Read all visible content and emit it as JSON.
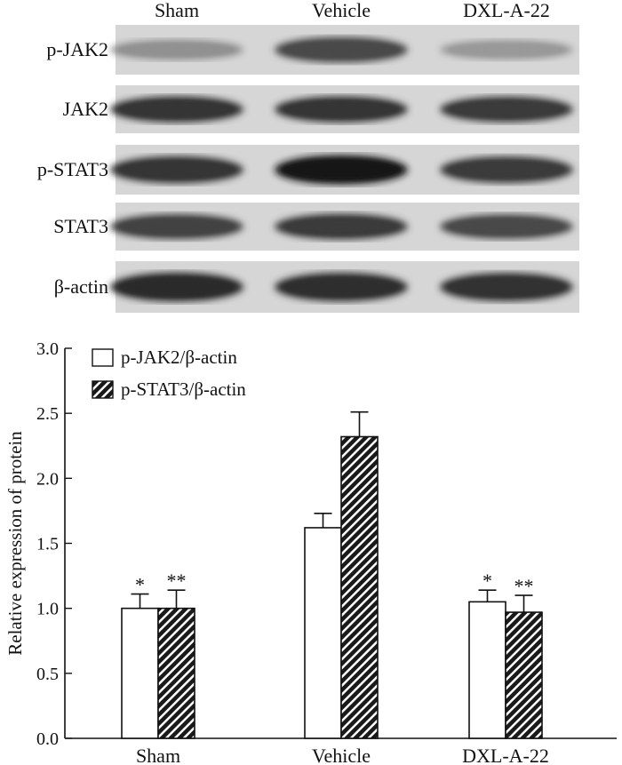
{
  "chart_data": [
    {
      "type": "western-blot",
      "lane_labels": [
        "Sham",
        "Vehicle",
        "DXL-A-22"
      ],
      "row_labels": [
        "p-JAK2",
        "JAK2",
        "p-STAT3",
        "STAT3",
        "β-actin"
      ],
      "band_intensity": [
        [
          0.42,
          0.75,
          0.38
        ],
        [
          0.85,
          0.85,
          0.82
        ],
        [
          0.85,
          0.98,
          0.82
        ],
        [
          0.78,
          0.82,
          0.75
        ],
        [
          0.9,
          0.88,
          0.86
        ]
      ]
    },
    {
      "type": "bar",
      "categories": [
        "Sham",
        "Vehicle",
        "DXL-A-22"
      ],
      "series": [
        {
          "name": "p-JAK2/β-actin",
          "values": [
            1.0,
            1.62,
            1.05
          ],
          "errors": [
            0.11,
            0.11,
            0.09
          ],
          "significance": [
            "*",
            "",
            "*"
          ],
          "fill": "#ffffff"
        },
        {
          "name": "p-STAT3/β-actin",
          "values": [
            1.0,
            2.32,
            0.97
          ],
          "errors": [
            0.14,
            0.19,
            0.13
          ],
          "significance": [
            "**",
            "",
            "**"
          ],
          "fill": "hatched"
        }
      ],
      "title": "",
      "xlabel": "",
      "ylabel": "Relative expression of protein",
      "ylim": [
        0,
        3.0
      ],
      "yticks": [
        "0.0",
        "0.5",
        "1.0",
        "1.5",
        "2.0",
        "2.5",
        "3.0"
      ],
      "legend_position": "top-left",
      "grid": false
    }
  ]
}
